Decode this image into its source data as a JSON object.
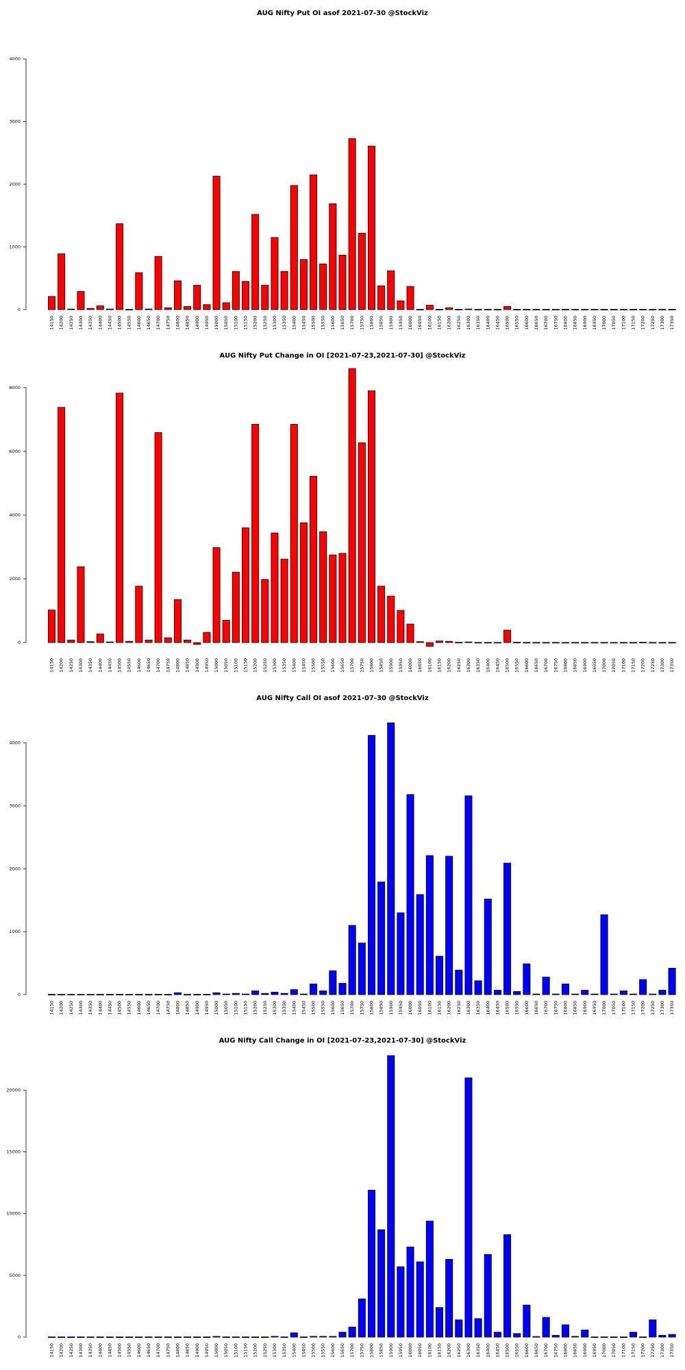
{
  "chart_data": [
    {
      "type": "bar",
      "title": "AUG Nifty Put OI asof 2021-07-30 @StockViz",
      "color": "#ff0000",
      "ylim": [
        0,
        4000
      ],
      "yticks": [
        0,
        1000,
        2000,
        3000,
        4000
      ],
      "categories": [
        "14150",
        "14200",
        "14250",
        "14300",
        "14350",
        "14400",
        "14450",
        "14500",
        "14550",
        "14600",
        "14650",
        "14700",
        "14750",
        "14800",
        "14850",
        "14900",
        "14950",
        "15000",
        "15050",
        "15100",
        "15150",
        "15200",
        "15250",
        "15300",
        "15350",
        "15400",
        "15450",
        "15500",
        "15550",
        "15600",
        "15650",
        "15700",
        "15750",
        "15800",
        "15850",
        "15900",
        "15950",
        "16000",
        "16050",
        "16100",
        "16150",
        "16200",
        "16250",
        "16300",
        "16350",
        "16400",
        "16450",
        "16500",
        "16550",
        "16600",
        "16650",
        "16700",
        "16750",
        "16800",
        "16850",
        "16900",
        "16950",
        "17000",
        "17050",
        "17100",
        "17150",
        "17200",
        "17250",
        "17300",
        "17350"
      ],
      "values": [
        210,
        890,
        10,
        290,
        20,
        60,
        10,
        1370,
        5,
        590,
        10,
        850,
        30,
        460,
        50,
        390,
        80,
        2130,
        110,
        610,
        450,
        1520,
        390,
        1150,
        610,
        1980,
        800,
        2150,
        730,
        1690,
        870,
        2730,
        1220,
        2610,
        380,
        620,
        140,
        370,
        5,
        70,
        5,
        30,
        5,
        10,
        5,
        5,
        5,
        50,
        5,
        5,
        5,
        5,
        5,
        5,
        5,
        5,
        5,
        5,
        5,
        5,
        5,
        5,
        5,
        5,
        5
      ]
    },
    {
      "type": "bar",
      "title": "AUG Nifty Put Change in OI [2021-07-23,2021-07-30] @StockViz",
      "color": "#ff0000",
      "ylim": [
        -300,
        8600
      ],
      "yticks": [
        0,
        2000,
        4000,
        6000,
        8000
      ],
      "categories": [
        "14150",
        "14200",
        "14250",
        "14300",
        "14350",
        "14400",
        "14450",
        "14500",
        "14550",
        "14600",
        "14650",
        "14700",
        "14750",
        "14800",
        "14850",
        "14900",
        "14950",
        "15000",
        "15050",
        "15100",
        "15150",
        "15200",
        "15250",
        "15300",
        "15350",
        "15400",
        "15450",
        "15500",
        "15550",
        "15600",
        "15650",
        "15700",
        "15750",
        "15800",
        "15850",
        "15900",
        "15950",
        "16000",
        "16050",
        "16100",
        "16150",
        "16200",
        "16250",
        "16300",
        "16350",
        "16400",
        "16450",
        "16500",
        "16550",
        "16600",
        "16650",
        "16700",
        "16750",
        "16800",
        "16850",
        "16900",
        "16950",
        "17000",
        "17050",
        "17100",
        "17150",
        "17200",
        "17250",
        "17300",
        "17350"
      ],
      "values": [
        1020,
        7380,
        80,
        2380,
        30,
        270,
        20,
        7830,
        40,
        1770,
        80,
        6590,
        150,
        1350,
        80,
        -60,
        320,
        2980,
        700,
        2210,
        3600,
        6850,
        1980,
        3440,
        2620,
        6850,
        3760,
        5220,
        3480,
        2750,
        2800,
        8600,
        6270,
        7900,
        1770,
        1460,
        1010,
        580,
        30,
        -120,
        50,
        40,
        10,
        20,
        5,
        5,
        5,
        390,
        10,
        5,
        5,
        5,
        5,
        5,
        5,
        5,
        5,
        5,
        5,
        5,
        5,
        10,
        5,
        5,
        5
      ]
    },
    {
      "type": "bar",
      "title": "AUG Nifty Call OI asof 2021-07-30 @StockViz",
      "color": "#0000ff",
      "ylim": [
        0,
        4300
      ],
      "yticks": [
        0,
        1000,
        2000,
        3000,
        4000
      ],
      "categories": [
        "14150",
        "14200",
        "14250",
        "14300",
        "14350",
        "14400",
        "14450",
        "14500",
        "14550",
        "14600",
        "14650",
        "14700",
        "14750",
        "14800",
        "14850",
        "14900",
        "14950",
        "15000",
        "15050",
        "15100",
        "15150",
        "15200",
        "15250",
        "15300",
        "15350",
        "15400",
        "15450",
        "15500",
        "15550",
        "15600",
        "15650",
        "15700",
        "15750",
        "15800",
        "15850",
        "15900",
        "15950",
        "16000",
        "16050",
        "16100",
        "16150",
        "16200",
        "16250",
        "16300",
        "16350",
        "16400",
        "16450",
        "16500",
        "16550",
        "16600",
        "16650",
        "16700",
        "16750",
        "16800",
        "16850",
        "16900",
        "16950",
        "17000",
        "17050",
        "17100",
        "17150",
        "17200",
        "17250",
        "17300",
        "17350"
      ],
      "values": [
        5,
        5,
        5,
        5,
        5,
        5,
        5,
        5,
        5,
        5,
        5,
        5,
        5,
        30,
        5,
        5,
        5,
        30,
        10,
        20,
        10,
        60,
        20,
        40,
        20,
        80,
        10,
        170,
        60,
        380,
        180,
        1100,
        820,
        4120,
        1790,
        4320,
        1300,
        3180,
        1590,
        2210,
        610,
        2200,
        390,
        3160,
        220,
        1520,
        70,
        2090,
        50,
        490,
        10,
        280,
        10,
        170,
        10,
        70,
        10,
        1270,
        10,
        60,
        10,
        240,
        10,
        70,
        420
      ]
    },
    {
      "type": "bar",
      "title": "AUG Nifty Call Change in OI [2021-07-23,2021-07-30] @StockViz",
      "color": "#0000ff",
      "ylim": [
        0,
        22800
      ],
      "yticks": [
        0,
        5000,
        10000,
        15000,
        20000
      ],
      "categories": [
        "14150",
        "14200",
        "14250",
        "14300",
        "14350",
        "14400",
        "14450",
        "14500",
        "14550",
        "14600",
        "14650",
        "14700",
        "14750",
        "14800",
        "14850",
        "14900",
        "14950",
        "15000",
        "15050",
        "15100",
        "15150",
        "15200",
        "15250",
        "15300",
        "15350",
        "15400",
        "15450",
        "15500",
        "15550",
        "15600",
        "15650",
        "15700",
        "15750",
        "15800",
        "15850",
        "15900",
        "15950",
        "16000",
        "16050",
        "16100",
        "16150",
        "16200",
        "16250",
        "16300",
        "16350",
        "16400",
        "16450",
        "16500",
        "16550",
        "16600",
        "16650",
        "16700",
        "16750",
        "16800",
        "16850",
        "16900",
        "16950",
        "17000",
        "17050",
        "17100",
        "17150",
        "17200",
        "17250",
        "17300",
        "17350"
      ],
      "values": [
        20,
        20,
        20,
        20,
        20,
        20,
        20,
        20,
        20,
        20,
        20,
        20,
        20,
        20,
        20,
        20,
        20,
        60,
        20,
        20,
        20,
        20,
        20,
        60,
        20,
        350,
        20,
        60,
        60,
        60,
        400,
        820,
        3100,
        11900,
        8700,
        22800,
        5700,
        7300,
        6100,
        9400,
        2400,
        6300,
        1400,
        21000,
        1500,
        6700,
        400,
        8300,
        290,
        2600,
        50,
        1600,
        150,
        1000,
        60,
        580,
        20,
        20,
        20,
        20,
        400,
        20,
        1400,
        150,
        220
      ]
    }
  ]
}
